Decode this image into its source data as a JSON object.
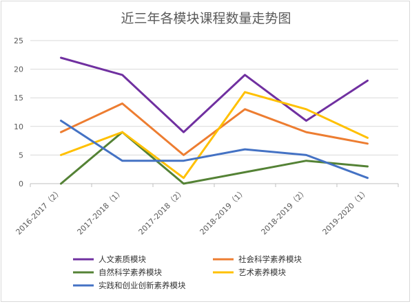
{
  "chart_data": {
    "type": "line",
    "title": "近三年各模块课程数量走势图",
    "categories": [
      "2016-2017（2）",
      "2017-2018（1）",
      "2017-2018（2）",
      "2018-2019（1）",
      "2018-2019（2）",
      "2019-2020（1）"
    ],
    "ylim": [
      0,
      25
    ],
    "yticks": [
      0,
      5,
      10,
      15,
      20,
      25
    ],
    "grid": true,
    "legend_position": "bottom",
    "series": [
      {
        "name": "人文素质模块",
        "color": "#7030a0",
        "values": [
          22,
          19,
          9,
          19,
          11,
          18
        ]
      },
      {
        "name": "社会科学素养模块",
        "color": "#ed7d31",
        "values": [
          9,
          14,
          5,
          13,
          9,
          7
        ]
      },
      {
        "name": "自然科学素养模块",
        "color": "#548235",
        "values": [
          0,
          9,
          0,
          2,
          4,
          3
        ]
      },
      {
        "name": "艺术素养模块",
        "color": "#ffc000",
        "values": [
          5,
          9,
          1,
          16,
          13,
          8
        ]
      },
      {
        "name": "实践和创业创新素养模块",
        "color": "#4472c4",
        "values": [
          11,
          4,
          4,
          6,
          5,
          1
        ]
      }
    ]
  }
}
